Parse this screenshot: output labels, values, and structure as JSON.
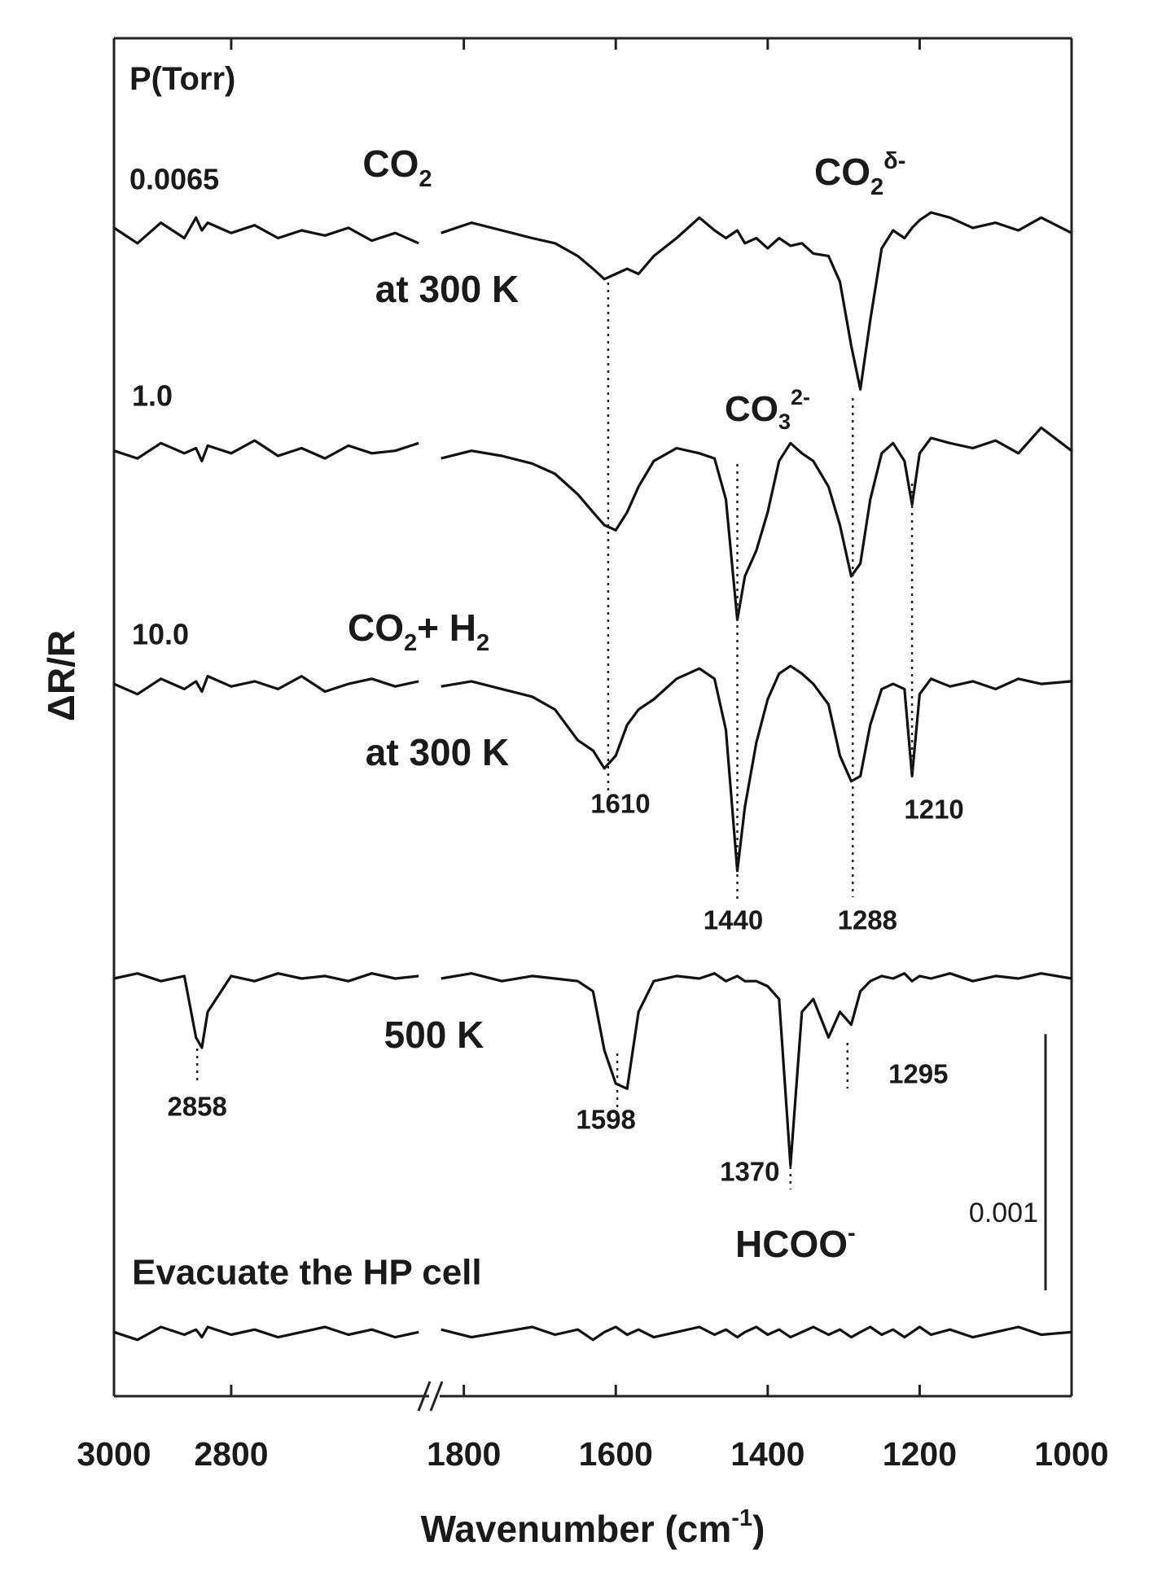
{
  "chart_data": {
    "type": "line",
    "y_label": "ΔR/R",
    "x_label": [
      {
        "text": "Wavenumber (cm"
      },
      {
        "text": "-1",
        "script": "super"
      },
      {
        "text": ")"
      }
    ],
    "x": [
      3000,
      2960,
      2920,
      2880,
      2860,
      2850,
      2840,
      2800,
      2760,
      2720,
      2680,
      2640,
      2600,
      2560,
      2520,
      2480,
      1830,
      1790,
      1750,
      1710,
      1680,
      1650,
      1630,
      1615,
      1600,
      1585,
      1570,
      1550,
      1520,
      1490,
      1470,
      1455,
      1440,
      1430,
      1415,
      1400,
      1385,
      1370,
      1355,
      1340,
      1320,
      1305,
      1290,
      1278,
      1265,
      1250,
      1235,
      1220,
      1210,
      1200,
      1185,
      1160,
      1130,
      1100,
      1070,
      1040,
      1000
    ],
    "x_segments": [
      [
        3000,
        2465
      ],
      [
        1835,
        1000
      ]
    ],
    "xticks": [
      3000,
      2800,
      1800,
      1600,
      1400,
      1200,
      1000
    ],
    "ylim": [
      0,
      0.0053
    ],
    "scale_bar": 0.001,
    "series": [
      {
        "name": "0.0065",
        "color": "#111111",
        "values": [
          0.00456,
          0.0045,
          0.00458,
          0.00452,
          0.0046,
          0.00455,
          0.00458,
          0.00454,
          0.00457,
          0.00452,
          0.00455,
          0.00453,
          0.00456,
          0.00451,
          0.00454,
          0.0045,
          0.00454,
          0.00458,
          0.00455,
          0.00452,
          0.0045,
          0.00445,
          0.0044,
          0.00436,
          0.00438,
          0.0044,
          0.00438,
          0.00445,
          0.00452,
          0.0046,
          0.00455,
          0.00452,
          0.00455,
          0.0045,
          0.00452,
          0.00448,
          0.00452,
          0.00449,
          0.0045,
          0.00446,
          0.00445,
          0.00435,
          0.0041,
          0.00393,
          0.0042,
          0.00448,
          0.00455,
          0.00452,
          0.00456,
          0.00459,
          0.00462,
          0.0046,
          0.00456,
          0.00458,
          0.00455,
          0.0046,
          0.00454
        ]
      },
      {
        "name": "1.0",
        "color": "#111111",
        "values": [
          0.00369,
          0.00366,
          0.00372,
          0.00368,
          0.0037,
          0.00365,
          0.00371,
          0.00368,
          0.00373,
          0.00367,
          0.0037,
          0.00366,
          0.00371,
          0.00368,
          0.00369,
          0.00372,
          0.00366,
          0.00369,
          0.00367,
          0.00364,
          0.0036,
          0.00352,
          0.00345,
          0.0034,
          0.00338,
          0.00345,
          0.00355,
          0.00365,
          0.0037,
          0.00368,
          0.00366,
          0.0035,
          0.00303,
          0.0032,
          0.0033,
          0.00345,
          0.00365,
          0.00372,
          0.00368,
          0.00365,
          0.00355,
          0.0034,
          0.0032,
          0.00325,
          0.0035,
          0.00368,
          0.00372,
          0.00365,
          0.00348,
          0.00368,
          0.00374,
          0.00372,
          0.0037,
          0.00373,
          0.00368,
          0.00378,
          0.00369
        ]
      },
      {
        "name": "10.0",
        "color": "#111111",
        "values": [
          0.00278,
          0.00274,
          0.0028,
          0.00276,
          0.00279,
          0.00275,
          0.00281,
          0.00277,
          0.00279,
          0.00276,
          0.00281,
          0.00275,
          0.00278,
          0.0028,
          0.00277,
          0.00279,
          0.00277,
          0.00279,
          0.00276,
          0.00273,
          0.00268,
          0.00256,
          0.00252,
          0.00245,
          0.0025,
          0.00262,
          0.00268,
          0.00272,
          0.0028,
          0.00284,
          0.0028,
          0.0026,
          0.00205,
          0.0023,
          0.00255,
          0.00272,
          0.00282,
          0.00285,
          0.00282,
          0.00278,
          0.0027,
          0.0025,
          0.0024,
          0.00242,
          0.00262,
          0.00276,
          0.00278,
          0.00276,
          0.00242,
          0.00274,
          0.0028,
          0.00277,
          0.00279,
          0.00276,
          0.0028,
          0.00278,
          0.00279
        ]
      },
      {
        "name": "500 K",
        "color": "#111111",
        "values": [
          0.00163,
          0.00165,
          0.00162,
          0.00164,
          0.0014,
          0.00136,
          0.0015,
          0.00164,
          0.00162,
          0.00165,
          0.00163,
          0.00164,
          0.00162,
          0.00165,
          0.00163,
          0.00164,
          0.00163,
          0.00165,
          0.00162,
          0.00164,
          0.00163,
          0.00162,
          0.00158,
          0.00135,
          0.00122,
          0.0012,
          0.0015,
          0.00162,
          0.00164,
          0.00163,
          0.00165,
          0.00162,
          0.00164,
          0.00162,
          0.00162,
          0.0016,
          0.00155,
          0.0009,
          0.0015,
          0.00155,
          0.0014,
          0.0015,
          0.00145,
          0.00158,
          0.00162,
          0.00164,
          0.00163,
          0.00165,
          0.00162,
          0.00164,
          0.00163,
          0.00165,
          0.00162,
          0.00164,
          0.00163,
          0.00165,
          0.00163
        ]
      },
      {
        "name": "Evacuate the HP cell",
        "color": "#111111",
        "values": [
          0.00025,
          0.00022,
          0.00027,
          0.00024,
          0.00026,
          0.00023,
          0.00027,
          0.00024,
          0.00026,
          0.00023,
          0.00025,
          0.00027,
          0.00024,
          0.00026,
          0.00023,
          0.00025,
          0.00026,
          0.00023,
          0.00025,
          0.00027,
          0.00024,
          0.00026,
          0.00022,
          0.00025,
          0.00027,
          0.00024,
          0.00026,
          0.00023,
          0.00025,
          0.00027,
          0.00024,
          0.00026,
          0.00023,
          0.00025,
          0.00027,
          0.00024,
          0.00026,
          0.00023,
          0.00025,
          0.00027,
          0.00024,
          0.00026,
          0.00023,
          0.00025,
          0.00027,
          0.00024,
          0.00026,
          0.00023,
          0.00025,
          0.00027,
          0.00024,
          0.00026,
          0.00023,
          0.00025,
          0.00027,
          0.00024,
          0.00025
        ]
      }
    ],
    "peak_labels": [
      1610,
      1440,
      1288,
      1210,
      2858,
      1598,
      1370,
      1295
    ],
    "annotations": [
      [
        {
          "text": "P(Torr)"
        }
      ],
      [
        {
          "text": "CO"
        },
        {
          "text": "2",
          "script": "sub"
        }
      ],
      [
        {
          "text": "at 300 K"
        }
      ],
      [
        {
          "text": "CO"
        },
        {
          "text": "2",
          "script": "sub"
        },
        {
          "text": "δ-",
          "script": "super"
        }
      ],
      [
        {
          "text": "CO"
        },
        {
          "text": "3",
          "script": "sub"
        },
        {
          "text": "2-",
          "script": "super"
        }
      ],
      [
        {
          "text": "CO"
        },
        {
          "text": "2",
          "script": "sub"
        },
        {
          "text": "+ H"
        },
        {
          "text": "2",
          "script": "sub"
        }
      ],
      [
        {
          "text": "at 300 K"
        }
      ],
      [
        {
          "text": "HCOO"
        },
        {
          "text": "-",
          "script": "super"
        }
      ]
    ]
  }
}
